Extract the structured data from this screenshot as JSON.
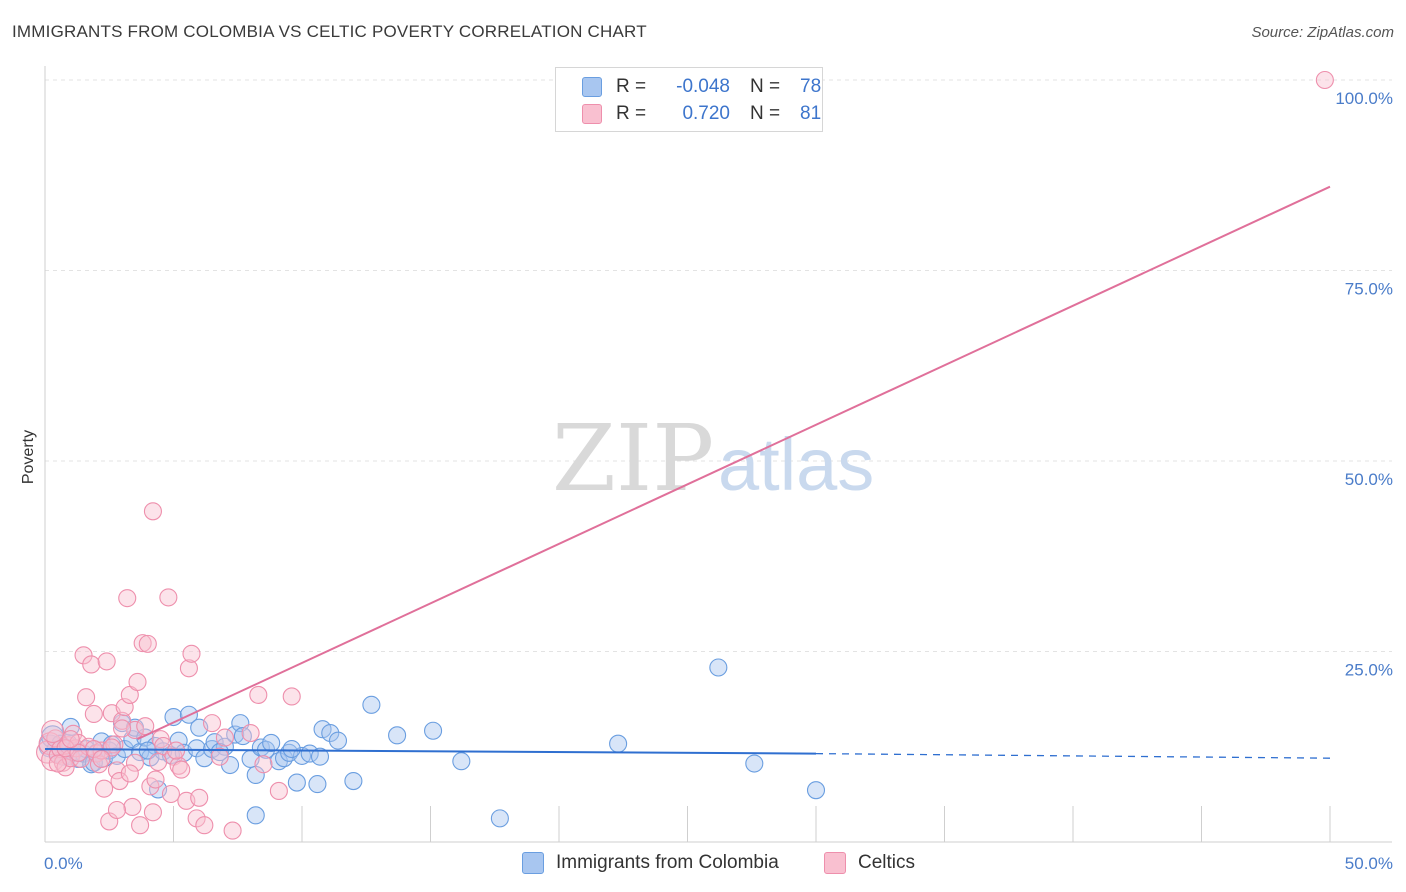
{
  "title": "IMMIGRANTS FROM COLOMBIA VS CELTIC POVERTY CORRELATION CHART",
  "source": "Source: ZipAtlas.com",
  "watermark": {
    "zip": "ZIP",
    "atlas": "atlas"
  },
  "legend": {
    "rows": [
      {
        "r_label": "R =",
        "r_value": "-0.048",
        "n_label": "N =",
        "n_value": "78",
        "color": "#a8c6f0",
        "border": "#6a9ee0"
      },
      {
        "r_label": "R =",
        "r_value": "0.720",
        "n_label": "N =",
        "n_value": "81",
        "color": "#f9c0d0",
        "border": "#ee8fac"
      }
    ]
  },
  "bottom_legend": [
    {
      "label": "Immigrants from Colombia",
      "color": "#a8c6f0",
      "border": "#6a9ee0"
    },
    {
      "label": "Celtics",
      "color": "#f9c0d0",
      "border": "#ee8fac"
    }
  ],
  "chart_data": {
    "type": "scatter",
    "title": "IMMIGRANTS FROM COLOMBIA VS CELTIC POVERTY CORRELATION CHART",
    "xlabel": "",
    "ylabel": "Poverty",
    "xlim": [
      0,
      50
    ],
    "ylim": [
      0,
      100
    ],
    "x_tick_labels": [
      "0.0%",
      "50.0%"
    ],
    "y_tick_labels": [
      "25.0%",
      "50.0%",
      "75.0%",
      "100.0%"
    ],
    "y_ticks": [
      25,
      50,
      75,
      100
    ],
    "series": [
      {
        "name": "Immigrants from Colombia",
        "color": "#6a9ee0",
        "fill": "#a8c6f0",
        "trend": {
          "x": [
            0,
            30
          ],
          "y": [
            12.2,
            11.6
          ],
          "dashed_to": [
            50,
            11.0
          ],
          "color": "#2f6fd0"
        },
        "points": [
          [
            0.2,
            12.6
          ],
          [
            0.3,
            13.8
          ],
          [
            0.4,
            12.1
          ],
          [
            0.5,
            11.5
          ],
          [
            0.6,
            12.9
          ],
          [
            0.7,
            11.2
          ],
          [
            0.8,
            12.4
          ],
          [
            0.9,
            13.0
          ],
          [
            1.0,
            15.1
          ],
          [
            1.1,
            11.8
          ],
          [
            1.2,
            12.3
          ],
          [
            1.3,
            10.9
          ],
          [
            1.5,
            11.6
          ],
          [
            1.6,
            12.2
          ],
          [
            1.8,
            10.2
          ],
          [
            2.0,
            11.7
          ],
          [
            2.2,
            13.2
          ],
          [
            2.3,
            11.0
          ],
          [
            2.5,
            12.0
          ],
          [
            2.8,
            11.3
          ],
          [
            3.0,
            15.6
          ],
          [
            3.1,
            12.2
          ],
          [
            3.4,
            13.5
          ],
          [
            3.5,
            15.0
          ],
          [
            3.7,
            11.8
          ],
          [
            3.9,
            13.7
          ],
          [
            4.1,
            11.1
          ],
          [
            4.3,
            12.6
          ],
          [
            4.4,
            6.9
          ],
          [
            4.6,
            11.9
          ],
          [
            4.9,
            11.4
          ],
          [
            5.0,
            16.4
          ],
          [
            5.2,
            13.3
          ],
          [
            5.4,
            11.7
          ],
          [
            5.6,
            16.7
          ],
          [
            5.9,
            12.3
          ],
          [
            6.0,
            15.0
          ],
          [
            6.2,
            11.0
          ],
          [
            6.5,
            12.2
          ],
          [
            6.6,
            13.1
          ],
          [
            7.0,
            12.5
          ],
          [
            7.2,
            10.1
          ],
          [
            7.4,
            14.1
          ],
          [
            7.6,
            15.6
          ],
          [
            7.7,
            13.9
          ],
          [
            8.0,
            10.9
          ],
          [
            8.2,
            8.8
          ],
          [
            8.4,
            12.4
          ],
          [
            8.6,
            12.1
          ],
          [
            8.8,
            13.0
          ],
          [
            9.1,
            10.6
          ],
          [
            9.3,
            11.0
          ],
          [
            9.5,
            11.7
          ],
          [
            9.8,
            7.8
          ],
          [
            10.0,
            11.3
          ],
          [
            10.3,
            11.6
          ],
          [
            10.6,
            7.6
          ],
          [
            10.7,
            11.2
          ],
          [
            10.8,
            14.8
          ],
          [
            11.1,
            14.3
          ],
          [
            11.4,
            13.3
          ],
          [
            12.0,
            8.0
          ],
          [
            12.7,
            18.0
          ],
          [
            13.7,
            14.0
          ],
          [
            15.1,
            14.6
          ],
          [
            16.2,
            10.6
          ],
          [
            17.7,
            3.1
          ],
          [
            22.3,
            12.9
          ],
          [
            26.2,
            22.9
          ],
          [
            27.6,
            10.3
          ],
          [
            30.0,
            6.8
          ],
          [
            8.2,
            3.5
          ],
          [
            1.9,
            10.4
          ],
          [
            2.6,
            12.8
          ],
          [
            4.0,
            12.0
          ],
          [
            6.8,
            11.8
          ],
          [
            9.6,
            12.2
          ],
          [
            0.9,
            11.3
          ]
        ]
      },
      {
        "name": "Celtics",
        "color": "#ee8fac",
        "fill": "#f9c0d0",
        "trend": {
          "x": [
            3.6,
            50
          ],
          "y": [
            13.5,
            86.0
          ],
          "color": "#e0709a"
        },
        "points": [
          [
            0.1,
            11.8
          ],
          [
            0.2,
            12.9
          ],
          [
            0.3,
            10.8
          ],
          [
            0.4,
            13.6
          ],
          [
            0.5,
            11.4
          ],
          [
            0.6,
            12.2
          ],
          [
            0.7,
            10.4
          ],
          [
            0.8,
            9.8
          ],
          [
            0.9,
            12.7
          ],
          [
            1.0,
            11.0
          ],
          [
            1.1,
            14.2
          ],
          [
            1.2,
            12.3
          ],
          [
            1.3,
            13.0
          ],
          [
            1.4,
            10.9
          ],
          [
            1.5,
            24.5
          ],
          [
            1.6,
            19.0
          ],
          [
            1.7,
            12.5
          ],
          [
            1.8,
            23.3
          ],
          [
            1.9,
            16.8
          ],
          [
            2.0,
            11.6
          ],
          [
            2.1,
            10.2
          ],
          [
            2.2,
            12.0
          ],
          [
            2.3,
            7.0
          ],
          [
            2.4,
            23.7
          ],
          [
            2.5,
            2.7
          ],
          [
            2.6,
            16.9
          ],
          [
            2.7,
            12.8
          ],
          [
            2.8,
            9.4
          ],
          [
            2.9,
            8.0
          ],
          [
            3.0,
            15.9
          ],
          [
            3.1,
            17.7
          ],
          [
            3.2,
            32.0
          ],
          [
            3.3,
            19.3
          ],
          [
            3.4,
            4.6
          ],
          [
            3.5,
            14.7
          ],
          [
            3.6,
            21.0
          ],
          [
            3.7,
            2.2
          ],
          [
            3.8,
            26.1
          ],
          [
            3.9,
            15.2
          ],
          [
            4.0,
            26.0
          ],
          [
            4.1,
            7.3
          ],
          [
            4.2,
            43.4
          ],
          [
            4.3,
            8.2
          ],
          [
            4.5,
            13.5
          ],
          [
            4.6,
            12.6
          ],
          [
            4.8,
            32.1
          ],
          [
            4.9,
            6.3
          ],
          [
            5.0,
            11.2
          ],
          [
            5.2,
            10.0
          ],
          [
            5.3,
            9.5
          ],
          [
            5.5,
            5.4
          ],
          [
            5.6,
            22.8
          ],
          [
            5.7,
            24.7
          ],
          [
            5.9,
            3.1
          ],
          [
            6.0,
            5.8
          ],
          [
            6.2,
            2.2
          ],
          [
            6.5,
            15.6
          ],
          [
            6.8,
            11.2
          ],
          [
            7.0,
            13.7
          ],
          [
            7.3,
            1.5
          ],
          [
            8.0,
            14.3
          ],
          [
            8.3,
            19.3
          ],
          [
            8.5,
            10.2
          ],
          [
            9.1,
            6.7
          ],
          [
            9.6,
            19.1
          ],
          [
            1.9,
            12.2
          ],
          [
            3.0,
            14.9
          ],
          [
            0.5,
            10.3
          ],
          [
            0.8,
            12.3
          ],
          [
            1.3,
            11.7
          ],
          [
            2.6,
            12.4
          ],
          [
            3.5,
            10.4
          ],
          [
            4.4,
            10.5
          ],
          [
            5.1,
            12.0
          ],
          [
            2.2,
            10.9
          ],
          [
            1.0,
            13.5
          ],
          [
            3.3,
            9.0
          ],
          [
            4.2,
            3.9
          ],
          [
            2.8,
            4.2
          ],
          [
            0.3,
            14.5
          ],
          [
            49.8,
            100.0
          ]
        ]
      }
    ]
  }
}
